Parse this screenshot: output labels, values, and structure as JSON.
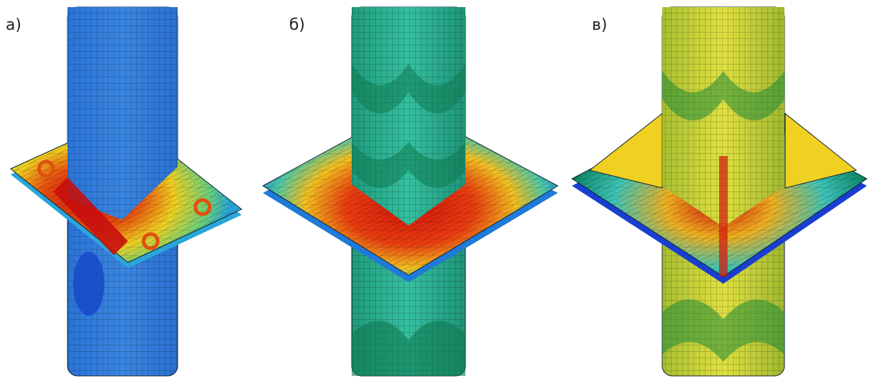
{
  "panels": [
    {
      "label": "а)"
    },
    {
      "label": "б)"
    },
    {
      "label": "в)"
    }
  ]
}
